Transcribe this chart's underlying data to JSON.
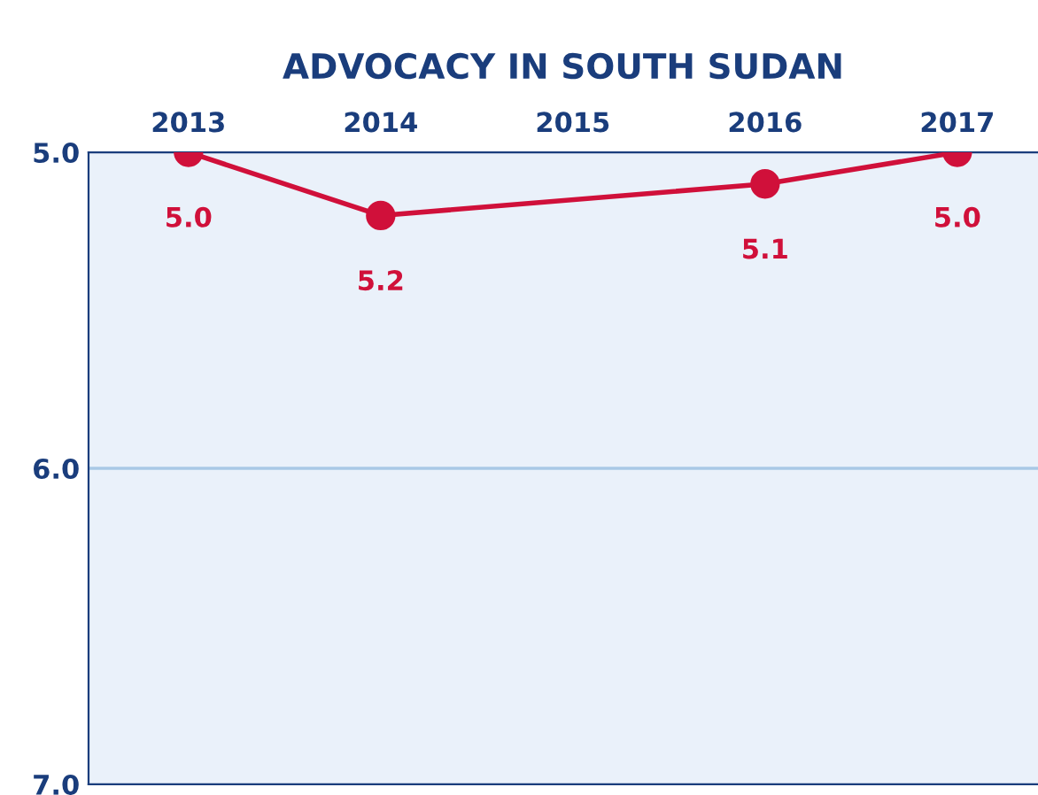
{
  "chart_data": {
    "type": "line",
    "title": "ADVOCACY IN SOUTH SUDAN",
    "x": [
      2013,
      2014,
      2016,
      2017
    ],
    "series": [
      {
        "color": "#d0103a",
        "values": [
          5.0,
          5.2,
          5.1,
          5.0
        ],
        "value_labels": [
          "5.0",
          "5.2",
          "5.1",
          "5.0"
        ]
      }
    ],
    "xlim": [
      2012.48,
      2017.42
    ],
    "xticks": [
      2013,
      2014,
      2015,
      2016,
      2017
    ],
    "ylim": [
      7.0,
      5.0
    ],
    "yticks": [
      {
        "value": 5,
        "label": "5.0"
      },
      {
        "value": 6,
        "label": "6.0"
      },
      {
        "value": 7,
        "label": "7.0"
      }
    ],
    "ref_lines": [
      {
        "axis": "y",
        "value": 6,
        "color": "#a9c8e6"
      }
    ],
    "marker": "circle",
    "line_style": "solid"
  }
}
